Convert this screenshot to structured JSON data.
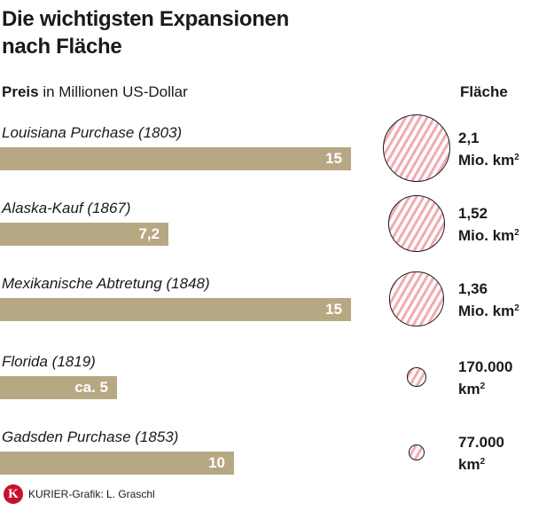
{
  "chart_data": {
    "type": "bar",
    "title_lines": [
      "Die wichtigsten Expansionen",
      "nach Fläche"
    ],
    "subtitle_bold": "Preis",
    "subtitle_rest": " in Millionen US-Dollar",
    "area_header": "Fläche",
    "price_max": 15,
    "area_max": 2.1,
    "categories": [
      "Louisiana Purchase (1803)",
      "Alaska-Kauf (1867)",
      "Mexikanische Abtretung (1848)",
      "Florida (1819)",
      "Gadsden Purchase (1853)"
    ],
    "series": [
      {
        "name": "Preis",
        "values": [
          15,
          7.2,
          15,
          5,
          10
        ],
        "labels": [
          "15",
          "7,2",
          "15",
          "ca. 5",
          "10"
        ]
      },
      {
        "name": "Fläche",
        "values": [
          2.1,
          1.52,
          1.36,
          0.17,
          0.077
        ],
        "label_line1": [
          "2,1",
          "1,52",
          "1,36",
          "170.000",
          "77.000"
        ],
        "label_line2": [
          "Mio. km",
          "Mio. km",
          "Mio. km",
          "km",
          "km"
        ],
        "label_sup": "2"
      }
    ],
    "colors": {
      "bar": "#b7a884",
      "hatch": "#f3aab0"
    }
  },
  "footer": {
    "logo_letter": "K",
    "credit": "KURIER-Grafik: L. Graschl"
  }
}
